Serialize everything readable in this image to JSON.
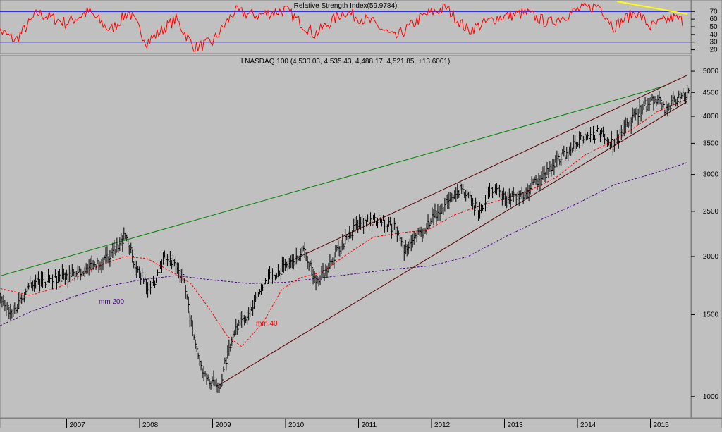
{
  "rsi_panel": {
    "title": "Relative Strength Index(59.9784)",
    "y_ticks": [
      "70",
      "60",
      "50",
      "40",
      "30",
      "20"
    ],
    "levels": [
      70,
      30
    ],
    "range": [
      15,
      85
    ]
  },
  "price_panel": {
    "title": "I NASDAQ 100 (4,530.03, 4,535.43, 4,488.17, 4,521.85, +13.6001)",
    "y_ticks": [
      "5000",
      "4500",
      "4000",
      "3500",
      "3000",
      "2500",
      "2000",
      "1500",
      "1000"
    ],
    "scale": "log",
    "ylim": [
      900,
      5400
    ]
  },
  "x_axis": {
    "labels": [
      "2007",
      "2008",
      "2009",
      "2010",
      "2011",
      "2012",
      "2013",
      "2014",
      "2015"
    ]
  },
  "annotations": {
    "ma200_label": "mm 200",
    "ma40_label": "mm 40"
  },
  "colors": {
    "background": "#c0c0c0",
    "rsi_line": "#ff0000",
    "rsi_levels": "#0000ff",
    "bars": "#000000",
    "ma40": "#ff0000",
    "ma200": "#4b0082",
    "long_trendline": "#008000",
    "channel_lines": "#5a0000",
    "rsi_trendline": "#ffff00"
  },
  "chart_data": {
    "type": "line",
    "scale": "log",
    "title": "I NASDAQ 100 (4,530.03, 4,535.43, 4,488.17, 4,521.85, +13.6001)",
    "x_labels": [
      "2007",
      "2008",
      "2009",
      "2010",
      "2011",
      "2012",
      "2013",
      "2014",
      "2015"
    ],
    "y_ticks": [
      5000,
      4500,
      4000,
      3500,
      3000,
      2500,
      2000,
      1500,
      1000
    ],
    "series": [
      {
        "name": "I NASDAQ 100",
        "points": [
          [
            2006.0,
            1700
          ],
          [
            2006.25,
            1500
          ],
          [
            2006.5,
            1750
          ],
          [
            2006.85,
            1800
          ],
          [
            2007.2,
            1850
          ],
          [
            2007.5,
            1950
          ],
          [
            2007.8,
            2200
          ],
          [
            2007.95,
            1900
          ],
          [
            2008.15,
            1700
          ],
          [
            2008.35,
            2000
          ],
          [
            2008.6,
            1800
          ],
          [
            2008.75,
            1300
          ],
          [
            2008.9,
            1100
          ],
          [
            2009.1,
            1050
          ],
          [
            2009.3,
            1400
          ],
          [
            2009.5,
            1500
          ],
          [
            2009.75,
            1800
          ],
          [
            2010.0,
            1900
          ],
          [
            2010.25,
            2050
          ],
          [
            2010.45,
            1750
          ],
          [
            2010.7,
            2050
          ],
          [
            2011.0,
            2350
          ],
          [
            2011.25,
            2400
          ],
          [
            2011.5,
            2300
          ],
          [
            2011.65,
            2050
          ],
          [
            2011.9,
            2300
          ],
          [
            2012.2,
            2600
          ],
          [
            2012.4,
            2800
          ],
          [
            2012.65,
            2500
          ],
          [
            2012.85,
            2800
          ],
          [
            2013.0,
            2650
          ],
          [
            2013.3,
            2750
          ],
          [
            2013.6,
            3050
          ],
          [
            2013.85,
            3350
          ],
          [
            2014.1,
            3600
          ],
          [
            2014.3,
            3700
          ],
          [
            2014.5,
            3450
          ],
          [
            2014.75,
            3950
          ],
          [
            2014.95,
            4250
          ],
          [
            2015.1,
            4400
          ],
          [
            2015.2,
            4150
          ],
          [
            2015.4,
            4400
          ],
          [
            2015.55,
            4500
          ]
        ]
      },
      {
        "name": "mm 40",
        "points": [
          [
            2006.0,
            1720
          ],
          [
            2006.5,
            1650
          ],
          [
            2006.9,
            1720
          ],
          [
            2007.4,
            1900
          ],
          [
            2007.8,
            2000
          ],
          [
            2008.1,
            1980
          ],
          [
            2008.45,
            1850
          ],
          [
            2008.7,
            1750
          ],
          [
            2008.95,
            1550
          ],
          [
            2009.2,
            1350
          ],
          [
            2009.4,
            1280
          ],
          [
            2009.7,
            1450
          ],
          [
            2009.95,
            1700
          ],
          [
            2010.2,
            1800
          ],
          [
            2010.5,
            1850
          ],
          [
            2010.8,
            2000
          ],
          [
            2011.2,
            2200
          ],
          [
            2011.6,
            2250
          ],
          [
            2011.95,
            2280
          ],
          [
            2012.3,
            2450
          ],
          [
            2012.6,
            2550
          ],
          [
            2012.9,
            2630
          ],
          [
            2013.3,
            2750
          ],
          [
            2013.7,
            2950
          ],
          [
            2014.1,
            3300
          ],
          [
            2014.5,
            3550
          ],
          [
            2014.8,
            3800
          ],
          [
            2015.1,
            4100
          ],
          [
            2015.5,
            4350
          ]
        ]
      },
      {
        "name": "mm 200",
        "points": [
          [
            2006.0,
            1400
          ],
          [
            2006.5,
            1520
          ],
          [
            2007.0,
            1620
          ],
          [
            2007.5,
            1720
          ],
          [
            2008.0,
            1780
          ],
          [
            2008.5,
            1820
          ],
          [
            2009.0,
            1780
          ],
          [
            2009.5,
            1750
          ],
          [
            2010.0,
            1760
          ],
          [
            2010.5,
            1800
          ],
          [
            2011.0,
            1840
          ],
          [
            2011.5,
            1880
          ],
          [
            2012.0,
            1910
          ],
          [
            2012.5,
            2000
          ],
          [
            2013.0,
            2200
          ],
          [
            2013.5,
            2400
          ],
          [
            2014.0,
            2600
          ],
          [
            2014.5,
            2850
          ],
          [
            2015.0,
            3000
          ],
          [
            2015.5,
            3180
          ]
        ]
      }
    ],
    "trendlines": [
      {
        "points": [
          [
            2006.0,
            1800
          ],
          [
            2015.2,
            4650
          ]
        ]
      },
      {
        "points": [
          [
            2010.05,
            1950
          ],
          [
            2015.5,
            4900
          ]
        ]
      },
      {
        "points": [
          [
            2009.05,
            1050
          ],
          [
            2015.5,
            4300
          ]
        ]
      }
    ],
    "rsi": {
      "title": "Relative Strength Index(59.9784)",
      "value": 59.9784,
      "levels": [
        70,
        30
      ],
      "points": [
        [
          2006.0,
          50
        ],
        [
          2006.3,
          32
        ],
        [
          2006.6,
          68
        ],
        [
          2007.0,
          55
        ],
        [
          2007.3,
          70
        ],
        [
          2007.6,
          45
        ],
        [
          2007.85,
          70
        ],
        [
          2008.1,
          30
        ],
        [
          2008.5,
          60
        ],
        [
          2008.75,
          22
        ],
        [
          2009.0,
          30
        ],
        [
          2009.3,
          70
        ],
        [
          2009.6,
          65
        ],
        [
          2010.0,
          72
        ],
        [
          2010.4,
          40
        ],
        [
          2010.8,
          70
        ],
        [
          2011.2,
          55
        ],
        [
          2011.5,
          35
        ],
        [
          2011.9,
          65
        ],
        [
          2012.2,
          75
        ],
        [
          2012.5,
          45
        ],
        [
          2012.9,
          62
        ],
        [
          2013.3,
          68
        ],
        [
          2013.6,
          55
        ],
        [
          2014.0,
          72
        ],
        [
          2014.3,
          78
        ],
        [
          2014.5,
          50
        ],
        [
          2014.8,
          70
        ],
        [
          2015.0,
          50
        ],
        [
          2015.3,
          62
        ],
        [
          2015.45,
          58
        ]
      ]
    }
  }
}
